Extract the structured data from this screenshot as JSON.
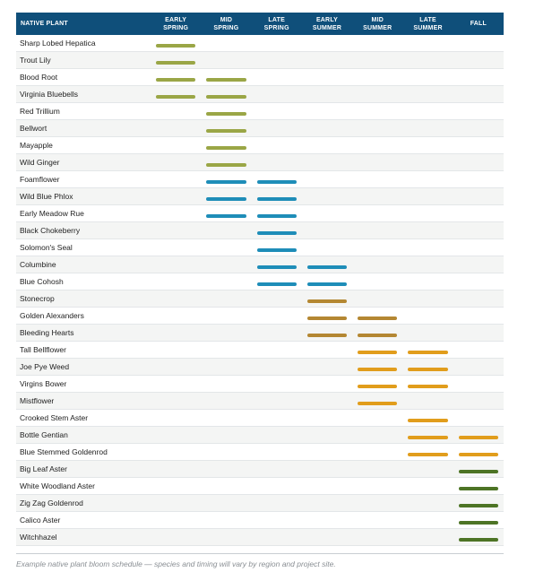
{
  "chart_data": {
    "type": "table",
    "columns": [
      "NATIVE PLANT",
      "EARLY SPRING",
      "MID SPRING",
      "LATE SPRING",
      "EARLY SUMMER",
      "MID SUMMER",
      "LATE SUMMER",
      "FALL"
    ],
    "column_lines": [
      [
        "NATIVE PLANT"
      ],
      [
        "EARLY",
        "SPRING"
      ],
      [
        "MID",
        "SPRING"
      ],
      [
        "LATE",
        "SPRING"
      ],
      [
        "EARLY",
        "SUMMER"
      ],
      [
        "MID",
        "SUMMER"
      ],
      [
        "LATE",
        "SUMMER"
      ],
      [
        "FALL"
      ]
    ],
    "colors": {
      "header_bg": "#0f4f7a",
      "green": "#9aa646",
      "blue": "#1e8db8",
      "brown": "#b48732",
      "orange": "#e19d1c",
      "dark_green": "#4d7425"
    },
    "rows": [
      {
        "plant": "Sharp Lobed Hepatica",
        "bloom": [
          1,
          0,
          0,
          0,
          0,
          0,
          0
        ],
        "color": "green"
      },
      {
        "plant": "Trout Lily",
        "bloom": [
          1,
          0,
          0,
          0,
          0,
          0,
          0
        ],
        "color": "green"
      },
      {
        "plant": "Blood Root",
        "bloom": [
          1,
          1,
          0,
          0,
          0,
          0,
          0
        ],
        "color": "green"
      },
      {
        "plant": "Virginia Bluebells",
        "bloom": [
          1,
          1,
          0,
          0,
          0,
          0,
          0
        ],
        "color": "green"
      },
      {
        "plant": "Red Trillium",
        "bloom": [
          0,
          1,
          0,
          0,
          0,
          0,
          0
        ],
        "color": "green"
      },
      {
        "plant": "Bellwort",
        "bloom": [
          0,
          1,
          0,
          0,
          0,
          0,
          0
        ],
        "color": "green"
      },
      {
        "plant": "Mayapple",
        "bloom": [
          0,
          1,
          0,
          0,
          0,
          0,
          0
        ],
        "color": "green"
      },
      {
        "plant": "Wild Ginger",
        "bloom": [
          0,
          1,
          0,
          0,
          0,
          0,
          0
        ],
        "color": "green"
      },
      {
        "plant": "Foamflower",
        "bloom": [
          0,
          1,
          1,
          0,
          0,
          0,
          0
        ],
        "color": "blue"
      },
      {
        "plant": "Wild Blue Phlox",
        "bloom": [
          0,
          1,
          1,
          0,
          0,
          0,
          0
        ],
        "color": "blue"
      },
      {
        "plant": "Early Meadow Rue",
        "bloom": [
          0,
          1,
          1,
          0,
          0,
          0,
          0
        ],
        "color": "blue"
      },
      {
        "plant": "Black Chokeberry",
        "bloom": [
          0,
          0,
          1,
          0,
          0,
          0,
          0
        ],
        "color": "blue"
      },
      {
        "plant": "Solomon's Seal",
        "bloom": [
          0,
          0,
          1,
          0,
          0,
          0,
          0
        ],
        "color": "blue"
      },
      {
        "plant": "Columbine",
        "bloom": [
          0,
          0,
          1,
          1,
          0,
          0,
          0
        ],
        "color": "blue"
      },
      {
        "plant": "Blue Cohosh",
        "bloom": [
          0,
          0,
          1,
          1,
          0,
          0,
          0
        ],
        "color": "blue"
      },
      {
        "plant": "Stonecrop",
        "bloom": [
          0,
          0,
          0,
          1,
          0,
          0,
          0
        ],
        "color": "brown"
      },
      {
        "plant": "Golden Alexanders",
        "bloom": [
          0,
          0,
          0,
          1,
          1,
          0,
          0
        ],
        "color": "brown"
      },
      {
        "plant": "Bleeding Hearts",
        "bloom": [
          0,
          0,
          0,
          1,
          1,
          0,
          0
        ],
        "color": "brown"
      },
      {
        "plant": "Tall Bellflower",
        "bloom": [
          0,
          0,
          0,
          0,
          1,
          1,
          0
        ],
        "color": "orange"
      },
      {
        "plant": "Joe Pye Weed",
        "bloom": [
          0,
          0,
          0,
          0,
          1,
          1,
          0
        ],
        "color": "orange"
      },
      {
        "plant": "Virgins Bower",
        "bloom": [
          0,
          0,
          0,
          0,
          1,
          1,
          0
        ],
        "color": "orange"
      },
      {
        "plant": "Mistflower",
        "bloom": [
          0,
          0,
          0,
          0,
          1,
          0,
          0
        ],
        "color": "orange"
      },
      {
        "plant": "Crooked Stem Aster",
        "bloom": [
          0,
          0,
          0,
          0,
          0,
          1,
          0
        ],
        "color": "orange"
      },
      {
        "plant": "Bottle Gentian",
        "bloom": [
          0,
          0,
          0,
          0,
          0,
          1,
          1
        ],
        "color": "orange"
      },
      {
        "plant": "Blue Stemmed Goldenrod",
        "bloom": [
          0,
          0,
          0,
          0,
          0,
          1,
          1
        ],
        "color": "orange"
      },
      {
        "plant": "Big Leaf Aster",
        "bloom": [
          0,
          0,
          0,
          0,
          0,
          0,
          1
        ],
        "color": "dark_green"
      },
      {
        "plant": "White Woodland Aster",
        "bloom": [
          0,
          0,
          0,
          0,
          0,
          0,
          1
        ],
        "color": "dark_green"
      },
      {
        "plant": "Zig Zag Goldenrod",
        "bloom": [
          0,
          0,
          0,
          0,
          0,
          0,
          1
        ],
        "color": "dark_green"
      },
      {
        "plant": "Calico Aster",
        "bloom": [
          0,
          0,
          0,
          0,
          0,
          0,
          1
        ],
        "color": "dark_green"
      },
      {
        "plant": "Witchhazel",
        "bloom": [
          0,
          0,
          0,
          0,
          0,
          0,
          1
        ],
        "color": "dark_green"
      }
    ]
  },
  "caption": "Example native plant bloom schedule — species and timing will vary by region and project site."
}
